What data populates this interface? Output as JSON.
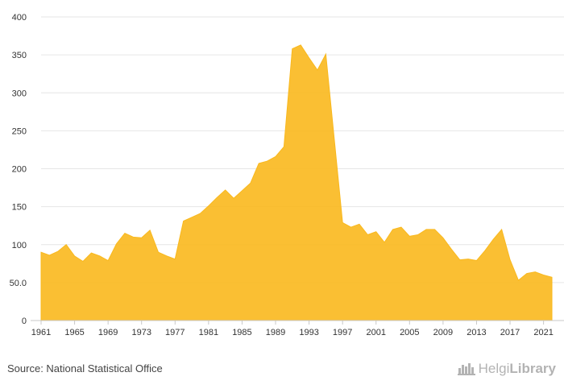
{
  "chart_data": {
    "type": "area",
    "title": "",
    "xlabel": "",
    "ylabel": "",
    "ylim": [
      0,
      400
    ],
    "yticks": [
      0,
      50,
      100,
      150,
      200,
      250,
      300,
      350,
      400
    ],
    "ytick_labels": [
      "0",
      "50.0",
      "100",
      "150",
      "200",
      "250",
      "300",
      "350",
      "400"
    ],
    "xlim": [
      1961,
      2022
    ],
    "xticks": [
      1961,
      1965,
      1969,
      1973,
      1977,
      1981,
      1985,
      1989,
      1993,
      1997,
      2001,
      2005,
      2009,
      2013,
      2017,
      2021
    ],
    "grid": true,
    "legend": "none",
    "color": "#f9b81d",
    "x": [
      1961,
      1962,
      1963,
      1964,
      1965,
      1966,
      1967,
      1968,
      1969,
      1970,
      1971,
      1972,
      1973,
      1974,
      1975,
      1976,
      1977,
      1978,
      1979,
      1980,
      1981,
      1982,
      1983,
      1984,
      1985,
      1986,
      1987,
      1988,
      1989,
      1990,
      1991,
      1992,
      1993,
      1994,
      1995,
      1996,
      1997,
      1998,
      1999,
      2000,
      2001,
      2002,
      2003,
      2004,
      2005,
      2006,
      2007,
      2008,
      2009,
      2010,
      2011,
      2012,
      2013,
      2014,
      2015,
      2016,
      2017,
      2018,
      2019,
      2020,
      2021,
      2022
    ],
    "values": [
      90,
      86,
      91,
      100,
      85,
      78,
      89,
      85,
      79,
      101,
      115,
      110,
      109,
      119,
      90,
      85,
      81,
      131,
      136,
      141,
      151,
      162,
      172,
      161,
      171,
      181,
      207,
      210,
      216,
      229,
      358,
      363,
      346,
      330,
      351,
      240,
      129,
      123,
      127,
      113,
      117,
      103,
      120,
      123,
      111,
      113,
      120,
      120,
      109,
      94,
      80,
      81,
      79,
      92,
      107,
      120,
      80,
      53,
      62,
      64,
      60,
      57
    ]
  },
  "footer": {
    "source": "Source: National Statistical Office",
    "brand_regular": "Helgi",
    "brand_bold": "Library"
  }
}
